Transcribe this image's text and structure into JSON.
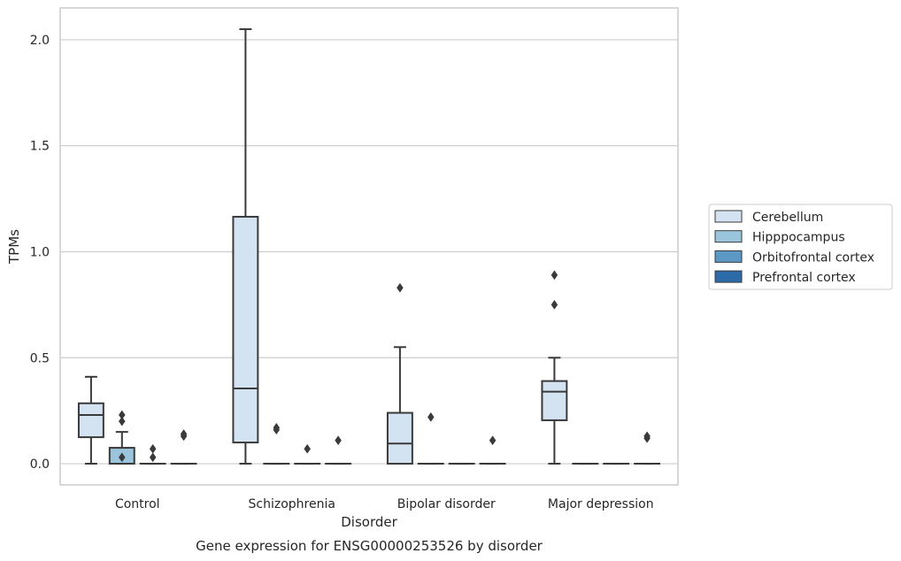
{
  "chart_data": {
    "type": "box",
    "title": "",
    "caption": "Gene expression for ENSG00000253526 by disorder",
    "xlabel": "Disorder",
    "ylabel": "TPMs",
    "ylim": [
      -0.1,
      2.15
    ],
    "yticks": [
      "0.0",
      "0.5",
      "1.0",
      "1.5",
      "2.0"
    ],
    "ytick_values": [
      0,
      0.5,
      1.0,
      1.5,
      2.0
    ],
    "grid": "horizontal",
    "legend_position": "right",
    "categories": [
      "Control",
      "Schizophrenia",
      "Bipolar disorder",
      "Major depression"
    ],
    "series": [
      {
        "name": "Cerebellum",
        "color": "#d4e3f2",
        "boxes": [
          {
            "whislo": 0.0,
            "q1": 0.125,
            "med": 0.23,
            "q3": 0.285,
            "whishi": 0.41,
            "fliers": []
          },
          {
            "whislo": 0.0,
            "q1": 0.1,
            "med": 0.355,
            "q3": 1.165,
            "whishi": 2.05,
            "fliers": []
          },
          {
            "whislo": 0.0,
            "q1": 0.0,
            "med": 0.095,
            "q3": 0.24,
            "whishi": 0.55,
            "fliers": [
              0.83
            ]
          },
          {
            "whislo": 0.0,
            "q1": 0.205,
            "med": 0.34,
            "q3": 0.39,
            "whishi": 0.5,
            "fliers": [
              0.75,
              0.89
            ]
          }
        ]
      },
      {
        "name": "Hipppocampus",
        "color": "#9ac5dd",
        "boxes": [
          {
            "whislo": 0.0,
            "q1": 0.0,
            "med": 0.0,
            "q3": 0.075,
            "whishi": 0.15,
            "fliers": [
              0.03,
              0.2,
              0.23
            ]
          },
          {
            "whislo": 0.0,
            "q1": 0.0,
            "med": 0.0,
            "q3": 0.0,
            "whishi": 0.0,
            "fliers": [
              0.16,
              0.17
            ]
          },
          {
            "whislo": 0.0,
            "q1": 0.0,
            "med": 0.0,
            "q3": 0.0,
            "whishi": 0.0,
            "fliers": [
              0.22
            ]
          },
          {
            "whislo": 0.0,
            "q1": 0.0,
            "med": 0.0,
            "q3": 0.0,
            "whishi": 0.0,
            "fliers": []
          }
        ]
      },
      {
        "name": "Orbitofrontal cortex",
        "color": "#5b98c5",
        "boxes": [
          {
            "whislo": 0.0,
            "q1": 0.0,
            "med": 0.0,
            "q3": 0.0,
            "whishi": 0.0,
            "fliers": [
              0.03,
              0.07
            ]
          },
          {
            "whislo": 0.0,
            "q1": 0.0,
            "med": 0.0,
            "q3": 0.0,
            "whishi": 0.0,
            "fliers": [
              0.07
            ]
          },
          {
            "whislo": 0.0,
            "q1": 0.0,
            "med": 0.0,
            "q3": 0.0,
            "whishi": 0.0,
            "fliers": []
          },
          {
            "whislo": 0.0,
            "q1": 0.0,
            "med": 0.0,
            "q3": 0.0,
            "whishi": 0.0,
            "fliers": []
          }
        ]
      },
      {
        "name": "Prefrontal cortex",
        "color": "#2c6aa8",
        "boxes": [
          {
            "whislo": 0.0,
            "q1": 0.0,
            "med": 0.0,
            "q3": 0.0,
            "whishi": 0.0,
            "fliers": [
              0.13,
              0.14
            ]
          },
          {
            "whislo": 0.0,
            "q1": 0.0,
            "med": 0.0,
            "q3": 0.0,
            "whishi": 0.0,
            "fliers": [
              0.11
            ]
          },
          {
            "whislo": 0.0,
            "q1": 0.0,
            "med": 0.0,
            "q3": 0.0,
            "whishi": 0.0,
            "fliers": [
              0.11
            ]
          },
          {
            "whislo": 0.0,
            "q1": 0.0,
            "med": 0.0,
            "q3": 0.0,
            "whishi": 0.0,
            "fliers": [
              0.12,
              0.13
            ]
          }
        ]
      }
    ]
  }
}
